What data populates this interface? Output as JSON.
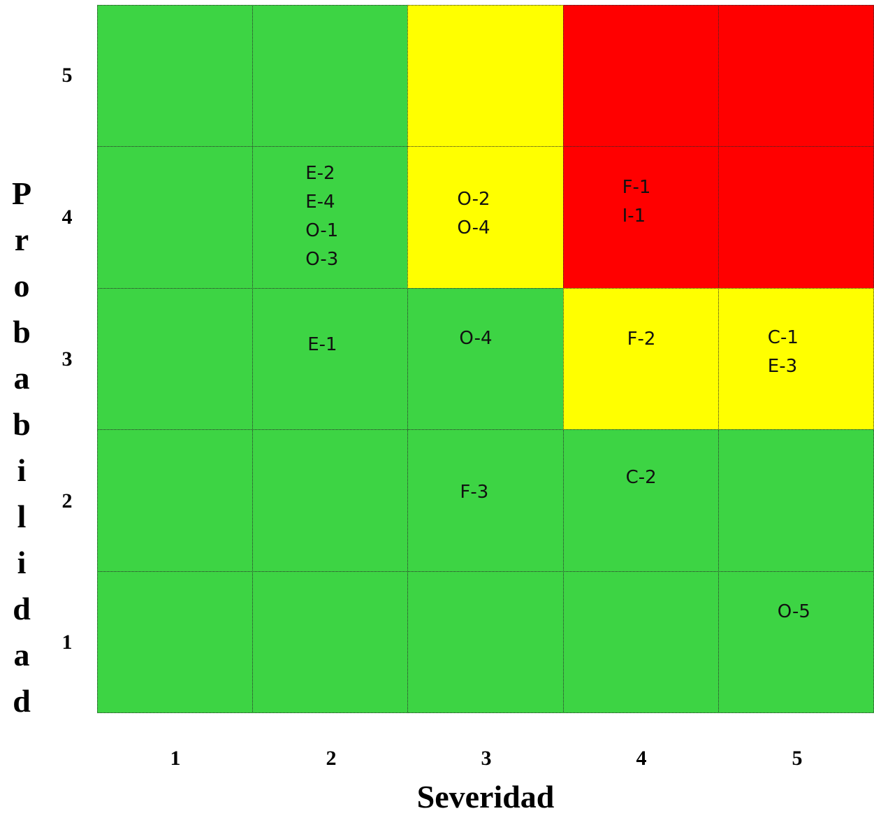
{
  "chart_data": {
    "type": "heatmap",
    "title": "",
    "xlabel": "Severidad",
    "ylabel": "Probabilidad",
    "x_ticks": [
      "1",
      "2",
      "3",
      "4",
      "5"
    ],
    "y_ticks": [
      "5",
      "4",
      "3",
      "2",
      "1"
    ],
    "colors": {
      "green": "#3dd444",
      "yellow": "#ffff00",
      "red": "#ff0000"
    },
    "cells": [
      {
        "severidad": 1,
        "probabilidad": 5,
        "color": "green",
        "labels": []
      },
      {
        "severidad": 2,
        "probabilidad": 5,
        "color": "green",
        "labels": []
      },
      {
        "severidad": 3,
        "probabilidad": 5,
        "color": "yellow",
        "labels": []
      },
      {
        "severidad": 4,
        "probabilidad": 5,
        "color": "red",
        "labels": []
      },
      {
        "severidad": 5,
        "probabilidad": 5,
        "color": "red",
        "labels": []
      },
      {
        "severidad": 1,
        "probabilidad": 4,
        "color": "green",
        "labels": []
      },
      {
        "severidad": 2,
        "probabilidad": 4,
        "color": "green",
        "labels": [
          "E-2",
          "E-4",
          "O-1",
          "O-3"
        ]
      },
      {
        "severidad": 3,
        "probabilidad": 4,
        "color": "yellow",
        "labels": [
          "O-2",
          "O-4"
        ]
      },
      {
        "severidad": 4,
        "probabilidad": 4,
        "color": "red",
        "labels": [
          "F-1",
          "I-1"
        ]
      },
      {
        "severidad": 5,
        "probabilidad": 4,
        "color": "red",
        "labels": []
      },
      {
        "severidad": 1,
        "probabilidad": 3,
        "color": "green",
        "labels": []
      },
      {
        "severidad": 2,
        "probabilidad": 3,
        "color": "green",
        "labels": [
          "E-1"
        ]
      },
      {
        "severidad": 3,
        "probabilidad": 3,
        "color": "green",
        "labels": [
          "O-4"
        ]
      },
      {
        "severidad": 4,
        "probabilidad": 3,
        "color": "yellow",
        "labels": [
          "F-2"
        ]
      },
      {
        "severidad": 5,
        "probabilidad": 3,
        "color": "yellow",
        "labels": [
          "C-1",
          "E-3"
        ]
      },
      {
        "severidad": 1,
        "probabilidad": 2,
        "color": "green",
        "labels": []
      },
      {
        "severidad": 2,
        "probabilidad": 2,
        "color": "green",
        "labels": []
      },
      {
        "severidad": 3,
        "probabilidad": 2,
        "color": "green",
        "labels": [
          "F-3"
        ]
      },
      {
        "severidad": 4,
        "probabilidad": 2,
        "color": "green",
        "labels": [
          "C-2"
        ]
      },
      {
        "severidad": 5,
        "probabilidad": 2,
        "color": "green",
        "labels": []
      },
      {
        "severidad": 1,
        "probabilidad": 1,
        "color": "green",
        "labels": []
      },
      {
        "severidad": 2,
        "probabilidad": 1,
        "color": "green",
        "labels": []
      },
      {
        "severidad": 3,
        "probabilidad": 1,
        "color": "green",
        "labels": []
      },
      {
        "severidad": 4,
        "probabilidad": 1,
        "color": "green",
        "labels": []
      },
      {
        "severidad": 5,
        "probabilidad": 1,
        "color": "green",
        "labels": [
          "O-5"
        ]
      }
    ]
  }
}
